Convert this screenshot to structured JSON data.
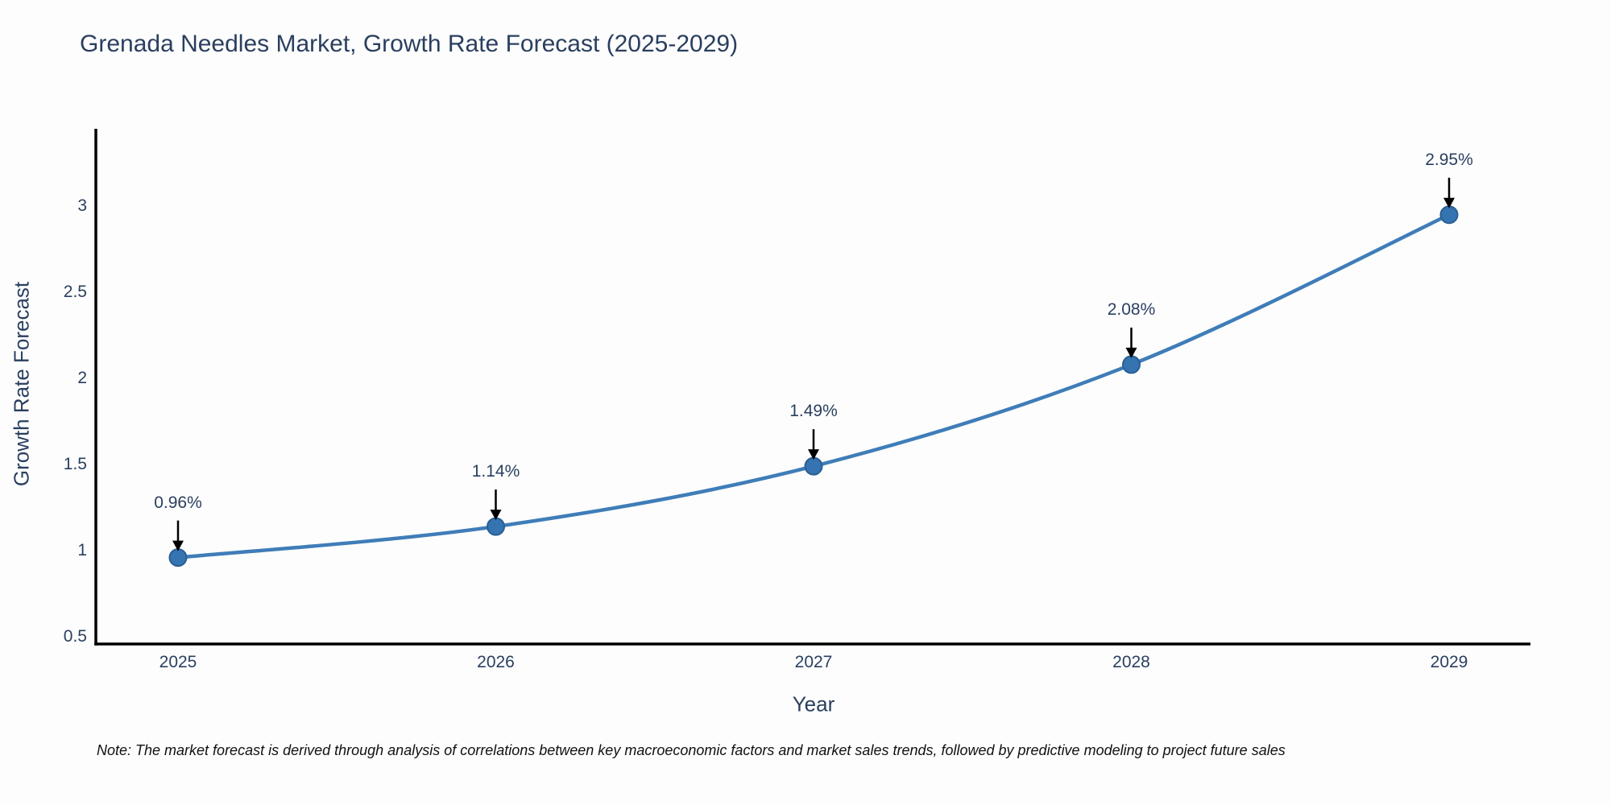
{
  "chart_data": {
    "type": "line",
    "title": "Grenada Needles Market, Growth Rate Forecast (2025-2029)",
    "x": [
      "2025",
      "2026",
      "2027",
      "2028",
      "2029"
    ],
    "values": [
      0.96,
      1.14,
      1.49,
      2.08,
      2.95
    ],
    "point_labels": [
      "0.96%",
      "1.14%",
      "1.49%",
      "2.08%",
      "2.95%"
    ],
    "xlabel": "Year",
    "ylabel": "Growth Rate Forecast",
    "yticks": [
      0.5,
      1,
      1.5,
      2,
      2.5,
      3
    ],
    "ylim": [
      0.458,
      3.449
    ],
    "grid": false,
    "legend": false,
    "line_shape": "spline",
    "line_color": "#3f7db8",
    "marker_color": "#3573b1",
    "marker_edge_color": "#2a5f94",
    "arrow_color": "#000000",
    "axis_color": "#000000",
    "text_color": "#2a3f5f"
  },
  "note": "Note: The market forecast is derived through analysis of correlations between key macroeconomic factors and market sales trends, followed by predictive modeling to project future sales"
}
